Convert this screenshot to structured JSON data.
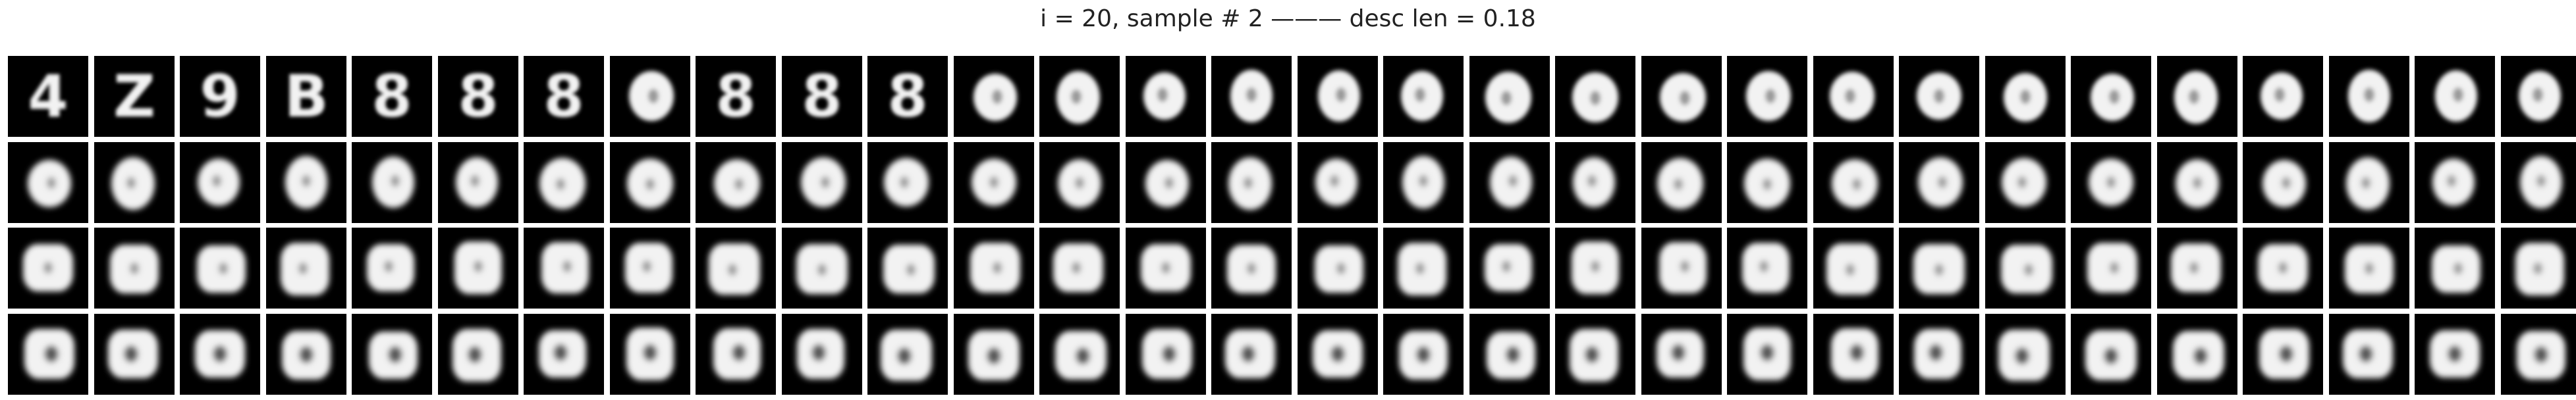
{
  "title": "i = 20, sample # 2 ——— desc len = 0.18",
  "grid": {
    "rows": 4,
    "cols": 30,
    "tile_background": "#000000",
    "digit_color": "#f2f2f2",
    "first_row_glyphs": [
      "4",
      "Z",
      "9",
      "B",
      "8",
      "8",
      "8",
      "",
      "8",
      "8",
      "8"
    ]
  }
}
